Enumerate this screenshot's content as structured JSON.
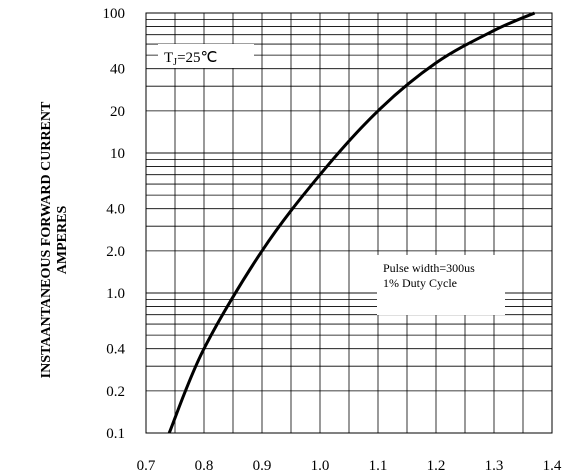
{
  "chart_data": {
    "type": "line",
    "title": "",
    "xlabel": "",
    "ylabel_line1": "INSTAANTANEOUS FORWARD CURRENT",
    "ylabel_line2": "AMPERES",
    "x_ticks": [
      "0.7",
      "0.8",
      "0.9",
      "1.0",
      "1.1",
      "1.2",
      "1.3",
      "1.4"
    ],
    "y_ticks": [
      {
        "value": 100,
        "label": "100"
      },
      {
        "value": 40,
        "label": "40"
      },
      {
        "value": 20,
        "label": "20"
      },
      {
        "value": 10,
        "label": "10"
      },
      {
        "value": 4,
        "label": "4.0"
      },
      {
        "value": 2,
        "label": "2.0"
      },
      {
        "value": 1,
        "label": "1.0"
      },
      {
        "value": 0.4,
        "label": "0.4"
      },
      {
        "value": 0.2,
        "label": "0.2"
      },
      {
        "value": 0.1,
        "label": "0.1"
      }
    ],
    "xlim": [
      0.7,
      1.4
    ],
    "ylim": [
      0.1,
      100
    ],
    "y_scale": "log",
    "grid": true,
    "series": [
      {
        "x": [
          0.74,
          0.8,
          0.9,
          1.0,
          1.1,
          1.2,
          1.3,
          1.37
        ],
        "values": [
          0.1,
          0.4,
          2.0,
          7.0,
          20,
          44,
          75,
          100
        ],
        "color": "#000000"
      }
    ],
    "annotations": {
      "tj_label": "T",
      "tj_sub": "J",
      "tj_value": "=25℃",
      "pulse_line1": "Pulse width=300us",
      "pulse_line2": "1% Duty Cycle"
    }
  }
}
